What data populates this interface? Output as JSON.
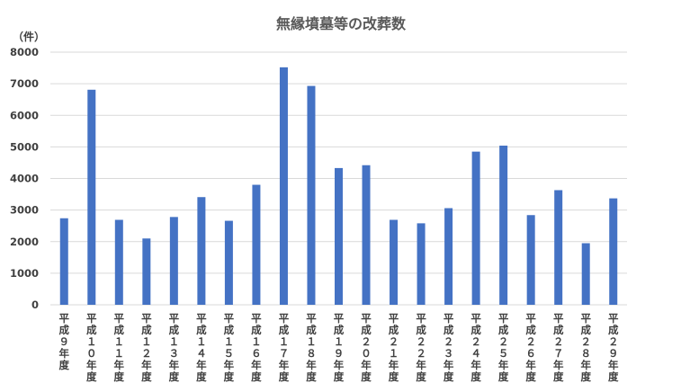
{
  "chart_data": {
    "type": "bar",
    "title": "無縁墳墓等の改葬数",
    "unit_label": "（件）",
    "xlabel": "",
    "ylabel": "",
    "ylim": [
      0,
      8000
    ],
    "yticks": [
      0,
      1000,
      2000,
      3000,
      4000,
      5000,
      6000,
      7000,
      8000
    ],
    "grid": true,
    "bar_color": "#4472c4",
    "categories": [
      "平成９年度",
      "平成１０年度",
      "平成１１年度",
      "平成１２年度",
      "平成１３年度",
      "平成１４年度",
      "平成１５年度",
      "平成１６年度",
      "平成１７年度",
      "平成１８年度",
      "平成１９年度",
      "平成２０年度",
      "平成２１年度",
      "平成２２年度",
      "平成２３年度",
      "平成２４年度",
      "平成２５年度",
      "平成２６年度",
      "平成２７年度",
      "平成２８年度",
      "平成２９年度"
    ],
    "values": [
      2740,
      6810,
      2690,
      2100,
      2780,
      3410,
      2660,
      3800,
      7520,
      6930,
      4330,
      4420,
      2690,
      2580,
      3060,
      4850,
      5040,
      2840,
      3630,
      1950,
      3370
    ]
  }
}
